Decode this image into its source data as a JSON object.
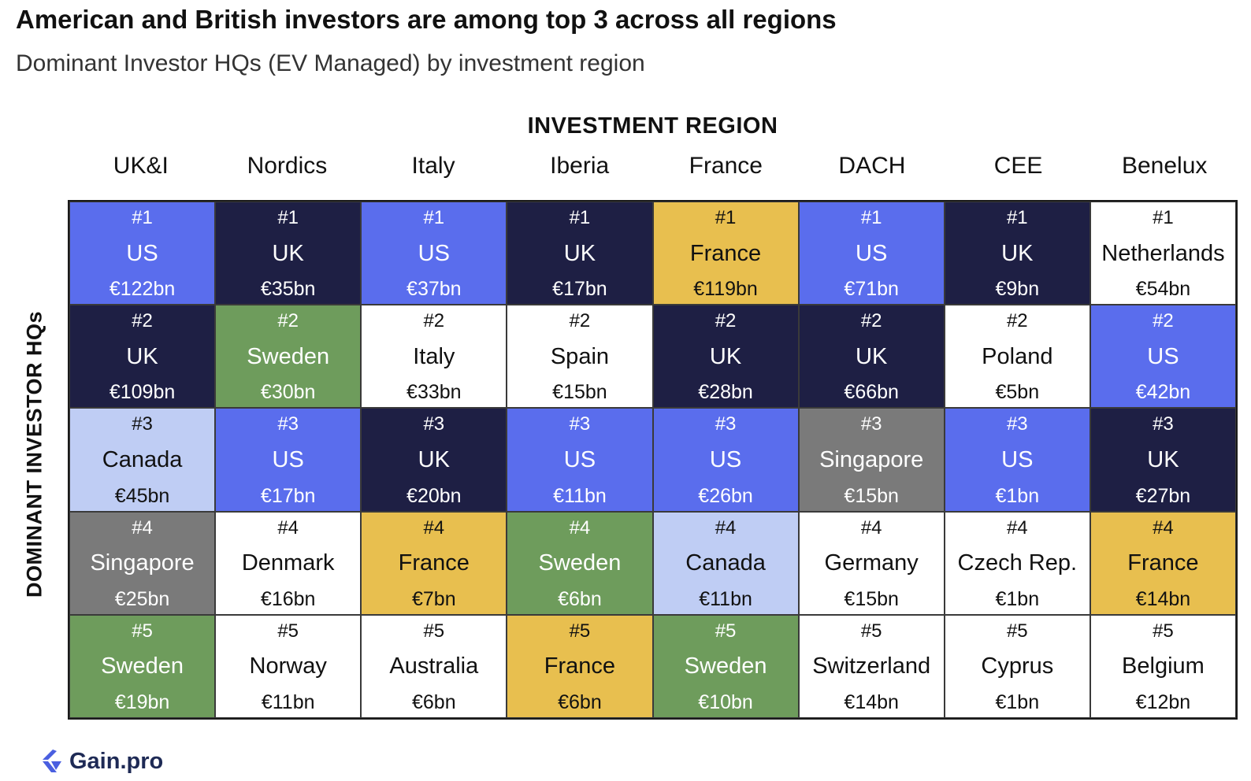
{
  "colors": {
    "US": "#5a6ded",
    "UK": "#1e1f44",
    "France": "#e8bf4f",
    "Sweden": "#6e9c5c",
    "Canada": "#bfcdf4",
    "Singapore": "#7a7a7a",
    "default": "#ffffff",
    "dark_text": "#111111",
    "light_text": "#ffffff",
    "logo": "#4a5fe0"
  },
  "logo": {
    "text": "Gain.pro",
    "icon": "gain-pro-logo-icon"
  },
  "chart_data": {
    "type": "table",
    "title": "American and British investors are among top 3 across all regions",
    "subtitle": "Dominant Investor HQs (EV Managed) by investment region",
    "xlabel": "INVESTMENT REGION",
    "ylabel": "DOMINANT INVESTOR HQs",
    "regions": [
      "UK&I",
      "Nordics",
      "Italy",
      "Iberia",
      "France",
      "DACH",
      "CEE",
      "Benelux"
    ],
    "ranks": [
      "#1",
      "#2",
      "#3",
      "#4",
      "#5"
    ],
    "rows": [
      [
        {
          "country": "US",
          "value": "€122bn"
        },
        {
          "country": "UK",
          "value": "€35bn"
        },
        {
          "country": "US",
          "value": "€37bn"
        },
        {
          "country": "UK",
          "value": "€17bn"
        },
        {
          "country": "France",
          "value": "€119bn"
        },
        {
          "country": "US",
          "value": "€71bn"
        },
        {
          "country": "UK",
          "value": "€9bn"
        },
        {
          "country": "Netherlands",
          "value": "€54bn"
        }
      ],
      [
        {
          "country": "UK",
          "value": "€109bn"
        },
        {
          "country": "Sweden",
          "value": "€30bn"
        },
        {
          "country": "Italy",
          "value": "€33bn"
        },
        {
          "country": "Spain",
          "value": "€15bn"
        },
        {
          "country": "UK",
          "value": "€28bn"
        },
        {
          "country": "UK",
          "value": "€66bn"
        },
        {
          "country": "Poland",
          "value": "€5bn"
        },
        {
          "country": "US",
          "value": "€42bn"
        }
      ],
      [
        {
          "country": "Canada",
          "value": "€45bn"
        },
        {
          "country": "US",
          "value": "€17bn"
        },
        {
          "country": "UK",
          "value": "€20bn"
        },
        {
          "country": "US",
          "value": "€11bn"
        },
        {
          "country": "US",
          "value": "€26bn"
        },
        {
          "country": "Singapore",
          "value": "€15bn"
        },
        {
          "country": "US",
          "value": "€1bn"
        },
        {
          "country": "UK",
          "value": "€27bn"
        }
      ],
      [
        {
          "country": "Singapore",
          "value": "€25bn"
        },
        {
          "country": "Denmark",
          "value": "€16bn"
        },
        {
          "country": "France",
          "value": "€7bn"
        },
        {
          "country": "Sweden",
          "value": "€6bn"
        },
        {
          "country": "Canada",
          "value": "€11bn"
        },
        {
          "country": "Germany",
          "value": "€15bn"
        },
        {
          "country": "Czech Rep.",
          "value": "€1bn"
        },
        {
          "country": "France",
          "value": "€14bn"
        }
      ],
      [
        {
          "country": "Sweden",
          "value": "€19bn"
        },
        {
          "country": "Norway",
          "value": "€11bn"
        },
        {
          "country": "Australia",
          "value": "€6bn"
        },
        {
          "country": "France",
          "value": "€6bn"
        },
        {
          "country": "Sweden",
          "value": "€10bn"
        },
        {
          "country": "Switzerland",
          "value": "€14bn"
        },
        {
          "country": "Cyprus",
          "value": "€1bn"
        },
        {
          "country": "Belgium",
          "value": "€12bn"
        }
      ]
    ]
  }
}
